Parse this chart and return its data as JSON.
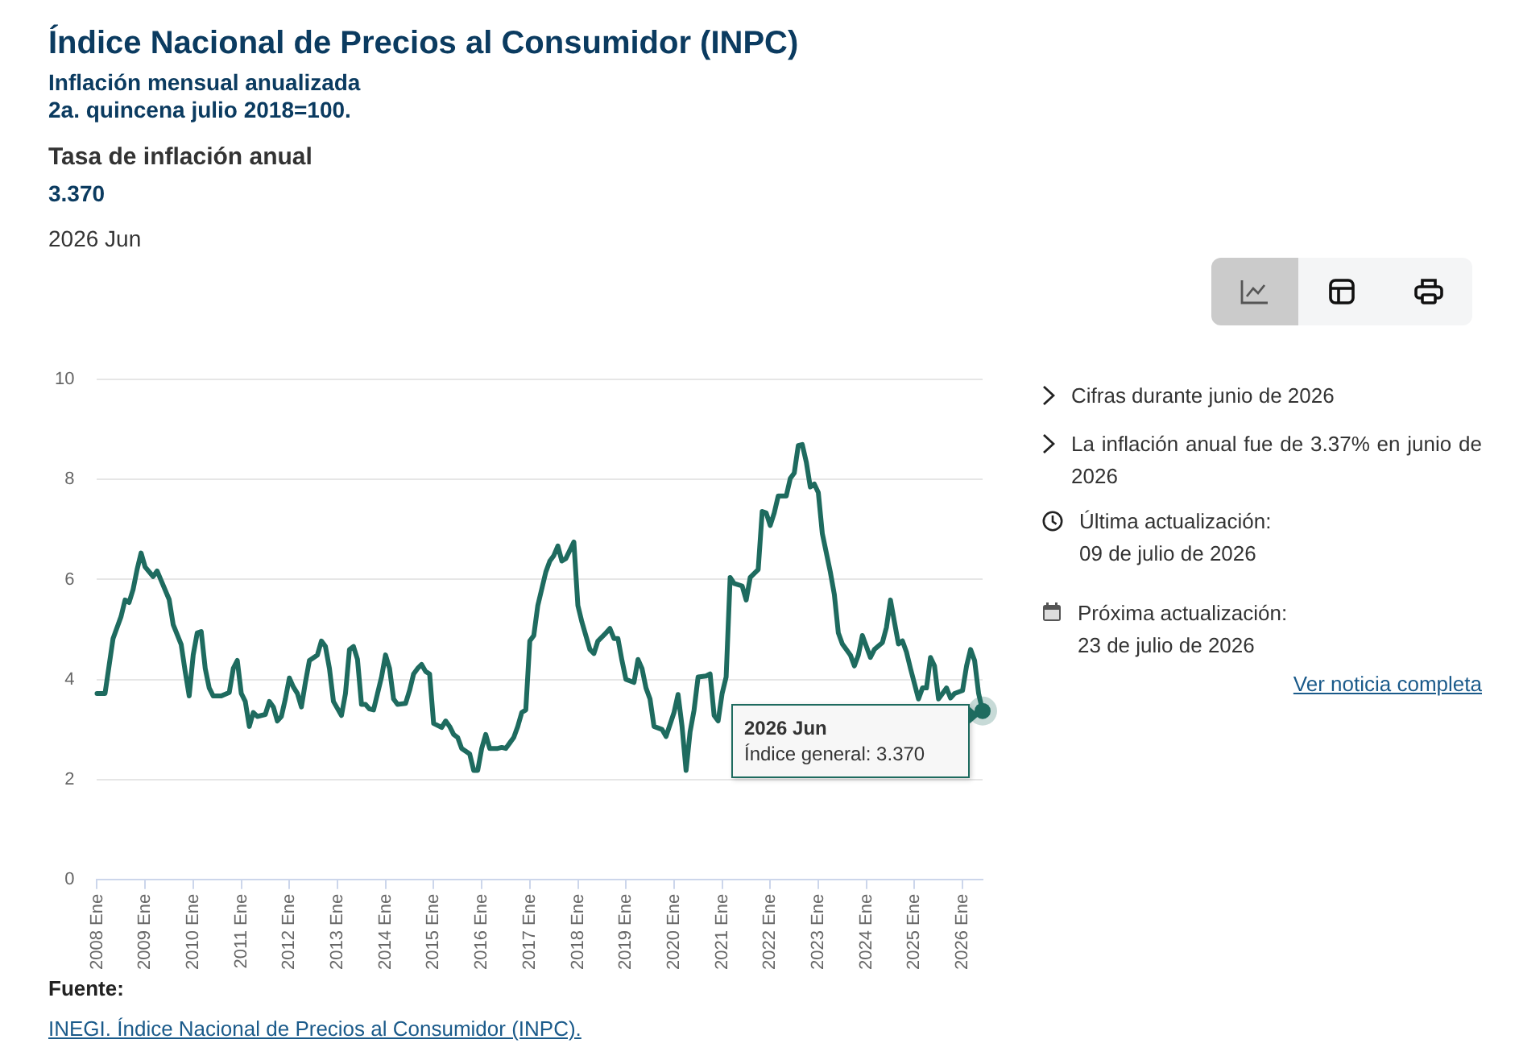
{
  "chart_data": {
    "type": "line",
    "title": "Índice Nacional de Precios al Consumidor (INPC)",
    "subtitle": "Inflación mensual anualizada",
    "annotations": [
      "2a. quincena julio 2018=100.",
      "Tasa de inflación anual",
      "3.370",
      "2026 Jun",
      "Cifras durante junio de 2026",
      "La inflación anual fue de 3.37% en junio de 2026",
      "Última actualización:\n09 de julio de 2026",
      "Próxima actualización:\n23 de julio de 2026",
      "Ver noticia completa",
      "Fuente:",
      "INEGI. Índice Nacional de Precios al Consumidor (INPC).",
      "2026 Jun\nÍndice general: 3.370"
    ],
    "series": [
      {
        "color": "#1e6b5f",
        "x": [
          "2008-01",
          "2008-03",
          "2008-04",
          "2008-05",
          "2008-07",
          "2008-08",
          "2008-09",
          "2008-10",
          "2008-11",
          "2008-12",
          "2009-01",
          "2009-03",
          "2009-04",
          "2009-05",
          "2009-07",
          "2009-08",
          "2009-10",
          "2009-11",
          "2009-12",
          "2010-01",
          "2010-02",
          "2010-03",
          "2010-04",
          "2010-05",
          "2010-06",
          "2010-08",
          "2010-10",
          "2010-11",
          "2010-12",
          "2011-01",
          "2011-02",
          "2011-03",
          "2011-04",
          "2011-05",
          "2011-07",
          "2011-08",
          "2011-09",
          "2011-10",
          "2011-11",
          "2011-12",
          "2012-01",
          "2012-02",
          "2012-03",
          "2012-04",
          "2012-05",
          "2012-06",
          "2012-08",
          "2012-09",
          "2012-10",
          "2012-11",
          "2012-12",
          "2013-02",
          "2013-03",
          "2013-04",
          "2013-05",
          "2013-06",
          "2013-07",
          "2013-08",
          "2013-09",
          "2013-10",
          "2013-11",
          "2013-12",
          "2014-01",
          "2014-02",
          "2014-03",
          "2014-04",
          "2014-06",
          "2014-07",
          "2014-08",
          "2014-09",
          "2014-10",
          "2014-11",
          "2014-12",
          "2015-01",
          "2015-03",
          "2015-04",
          "2015-05",
          "2015-06",
          "2015-07",
          "2015-08",
          "2015-10",
          "2015-11",
          "2015-12",
          "2016-01",
          "2016-02",
          "2016-03",
          "2016-05",
          "2016-06",
          "2016-07",
          "2016-08",
          "2016-09",
          "2016-10",
          "2016-11",
          "2016-12",
          "2017-01",
          "2017-02",
          "2017-03",
          "2017-05",
          "2017-06",
          "2017-07",
          "2017-08",
          "2017-09",
          "2017-10",
          "2017-12",
          "2018-01",
          "2018-02",
          "2018-04",
          "2018-05",
          "2018-06",
          "2018-08",
          "2018-09",
          "2018-10",
          "2018-11",
          "2018-12",
          "2019-01",
          "2019-03",
          "2019-04",
          "2019-05",
          "2019-06",
          "2019-07",
          "2019-08",
          "2019-10",
          "2019-11",
          "2020-01",
          "2020-02",
          "2020-03",
          "2020-04",
          "2020-05",
          "2020-06",
          "2020-07",
          "2020-09",
          "2020-10",
          "2020-11",
          "2020-12",
          "2021-01",
          "2021-02",
          "2021-03",
          "2021-04",
          "2021-06",
          "2021-07",
          "2021-08",
          "2021-10",
          "2021-11",
          "2021-12",
          "2022-01",
          "2022-02",
          "2022-03",
          "2022-05",
          "2022-06",
          "2022-07",
          "2022-08",
          "2022-09",
          "2022-10",
          "2022-11",
          "2022-12",
          "2023-01",
          "2023-02",
          "2023-04",
          "2023-05",
          "2023-06",
          "2023-07",
          "2023-09",
          "2023-10",
          "2023-11",
          "2023-12",
          "2024-02",
          "2024-03",
          "2024-05",
          "2024-06",
          "2024-07",
          "2024-08",
          "2024-09",
          "2024-10",
          "2024-11",
          "2024-12",
          "2025-02",
          "2025-03",
          "2025-04",
          "2025-05",
          "2025-06",
          "2025-07",
          "2025-08",
          "2025-09",
          "2025-10",
          "2025-11",
          "2026-01",
          "2026-02",
          "2026-03",
          "2026-04",
          "2026-05",
          "2026-06"
        ],
        "values": [
          3.72,
          3.72,
          4.27,
          4.82,
          5.26,
          5.59,
          5.54,
          5.8,
          6.2,
          6.53,
          6.25,
          6.06,
          6.17,
          5.98,
          5.6,
          5.1,
          4.7,
          4.16,
          3.67,
          4.49,
          4.93,
          4.96,
          4.22,
          3.83,
          3.67,
          3.67,
          3.74,
          4.22,
          4.38,
          3.72,
          3.56,
          3.06,
          3.34,
          3.26,
          3.3,
          3.56,
          3.45,
          3.17,
          3.26,
          3.61,
          4.03,
          3.85,
          3.72,
          3.45,
          3.94,
          4.38,
          4.49,
          4.77,
          4.66,
          4.22,
          3.56,
          3.28,
          3.72,
          4.6,
          4.66,
          4.4,
          3.5,
          3.5,
          3.41,
          3.39,
          3.72,
          4.05,
          4.49,
          4.22,
          3.61,
          3.5,
          3.52,
          3.78,
          4.11,
          4.22,
          4.3,
          4.16,
          4.11,
          3.12,
          3.04,
          3.17,
          3.06,
          2.9,
          2.84,
          2.62,
          2.51,
          2.18,
          2.18,
          2.62,
          2.9,
          2.62,
          2.62,
          2.64,
          2.62,
          2.73,
          2.84,
          3.06,
          3.34,
          3.39,
          4.77,
          4.88,
          5.48,
          6.15,
          6.37,
          6.48,
          6.67,
          6.37,
          6.42,
          6.75,
          5.48,
          5.15,
          4.6,
          4.52,
          4.77,
          4.93,
          5.02,
          4.82,
          4.82,
          4.38,
          4.0,
          3.94,
          4.4,
          4.22,
          3.83,
          3.61,
          3.06,
          3.0,
          2.86,
          3.34,
          3.7,
          3.06,
          2.18,
          2.95,
          3.39,
          4.05,
          4.07,
          4.11,
          3.28,
          3.17,
          3.72,
          4.05,
          6.04,
          5.92,
          5.87,
          5.59,
          6.04,
          6.2,
          7.36,
          7.33,
          7.08,
          7.33,
          7.67,
          7.67,
          8.02,
          8.13,
          8.68,
          8.7,
          8.35,
          7.85,
          7.91,
          7.74,
          6.92,
          6.15,
          5.7,
          4.93,
          4.71,
          4.49,
          4.27,
          4.49,
          4.88,
          4.44,
          4.6,
          4.74,
          5.04,
          5.59,
          5.15,
          4.71,
          4.77,
          4.55,
          4.22,
          3.61,
          3.83,
          3.83,
          4.44,
          4.27,
          3.61,
          3.72,
          3.83,
          3.63,
          3.72,
          3.78,
          4.27,
          4.6,
          4.38,
          3.72,
          3.37
        ]
      }
    ],
    "xlim": [
      "2008-01",
      "2026-06"
    ],
    "xticks": [
      {
        "value": "2008-01",
        "label": "2008 Ene"
      },
      {
        "value": "2009-01",
        "label": "2009 Ene"
      },
      {
        "value": "2010-01",
        "label": "2010 Ene"
      },
      {
        "value": "2011-01",
        "label": "2011 Ene"
      },
      {
        "value": "2012-01",
        "label": "2012 Ene"
      },
      {
        "value": "2013-01",
        "label": "2013 Ene"
      },
      {
        "value": "2014-01",
        "label": "2014 Ene"
      },
      {
        "value": "2015-01",
        "label": "2015 Ene"
      },
      {
        "value": "2016-01",
        "label": "2016 Ene"
      },
      {
        "value": "2017-01",
        "label": "2017 Ene"
      },
      {
        "value": "2018-01",
        "label": "2018 Ene"
      },
      {
        "value": "2019-01",
        "label": "2019 Ene"
      },
      {
        "value": "2020-01",
        "label": "2020 Ene"
      },
      {
        "value": "2021-01",
        "label": "2021 Ene"
      },
      {
        "value": "2022-01",
        "label": "2022 Ene"
      },
      {
        "value": "2023-01",
        "label": "2023 Ene"
      },
      {
        "value": "2024-01",
        "label": "2024 Ene"
      },
      {
        "value": "2025-01",
        "label": "2025 Ene"
      },
      {
        "value": "2026-01",
        "label": "2026 Ene"
      }
    ],
    "ylim": [
      0,
      10
    ],
    "yticks": [
      0,
      2,
      4,
      6,
      8,
      10
    ],
    "grid": "y",
    "legend": false,
    "marker": "none",
    "line_style": "solid"
  }
}
